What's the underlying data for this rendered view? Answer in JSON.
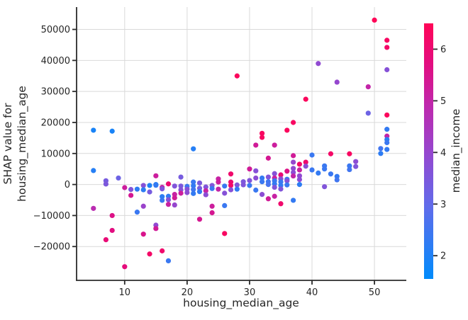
{
  "figure": {
    "background": "#ffffff",
    "grid_color": "#d9d9d9",
    "spine_color": "#2b2b2b",
    "tick_color": "#2b2b2b",
    "text_color": "#262626"
  },
  "chart_data": {
    "type": "scatter",
    "title": "",
    "xlabel": "housing_median_age",
    "ylabel_line1": "SHAP value for",
    "ylabel_line2": "housing_median_age",
    "colorbar_label": "median_income",
    "xlim": [
      2.3,
      55.1
    ],
    "ylim": [
      -30900,
      57200
    ],
    "grid": true,
    "legend_position": "colorbar-right",
    "xticks": [
      {
        "v": 10,
        "label": "10"
      },
      {
        "v": 20,
        "label": "20"
      },
      {
        "v": 30,
        "label": "30"
      },
      {
        "v": 40,
        "label": "40"
      },
      {
        "v": 50,
        "label": "50"
      }
    ],
    "yticks": [
      {
        "v": -20000,
        "label": "−20000"
      },
      {
        "v": -10000,
        "label": "−10000"
      },
      {
        "v": 0,
        "label": "0"
      },
      {
        "v": 10000,
        "label": "10000"
      },
      {
        "v": 20000,
        "label": "20000"
      },
      {
        "v": 30000,
        "label": "30000"
      },
      {
        "v": 40000,
        "label": "40000"
      },
      {
        "v": 50000,
        "label": "50000"
      }
    ],
    "colorbar_ticks": [
      {
        "v": 6,
        "label": "6"
      },
      {
        "v": 5,
        "label": "5"
      },
      {
        "v": 4,
        "label": "4"
      },
      {
        "v": 3,
        "label": "3"
      },
      {
        "v": 2,
        "label": "2"
      }
    ],
    "colorbar_range": [
      1.55,
      6.5
    ],
    "colormap_stops": [
      [
        0.0,
        "#008bfb"
      ],
      [
        0.28,
        "#5f6ceb"
      ],
      [
        0.48,
        "#9249d1"
      ],
      [
        0.68,
        "#bf28ad"
      ],
      [
        0.84,
        "#e20d80"
      ],
      [
        1.0,
        "#ff0557"
      ]
    ],
    "points_format": [
      "housing_median_age",
      "shap_value",
      "median_income"
    ],
    "points": [
      [
        5,
        17500,
        1.9
      ],
      [
        8,
        17200,
        1.9
      ],
      [
        5,
        4500,
        2.1
      ],
      [
        7,
        1200,
        3.4
      ],
      [
        9,
        2100,
        3.2
      ],
      [
        7,
        150,
        3.5
      ],
      [
        5,
        -7700,
        4.8
      ],
      [
        8,
        -10000,
        5.6
      ],
      [
        8,
        -14800,
        5.7
      ],
      [
        7,
        -17800,
        5.9
      ],
      [
        10,
        -26500,
        5.8
      ],
      [
        10,
        -1000,
        5.2
      ],
      [
        11,
        -1600,
        3.6
      ],
      [
        11,
        -3500,
        5.4
      ],
      [
        12,
        -1500,
        2.2
      ],
      [
        12,
        -8900,
        2.4
      ],
      [
        13,
        -300,
        3.7
      ],
      [
        13,
        -1700,
        2.2
      ],
      [
        13,
        -7000,
        4.1
      ],
      [
        13,
        -16000,
        5.5
      ],
      [
        14,
        -300,
        2.0
      ],
      [
        14,
        -2400,
        3.4
      ],
      [
        14,
        -22400,
        6.2
      ],
      [
        15,
        2800,
        5.2
      ],
      [
        15,
        0,
        2.1
      ],
      [
        15,
        -250,
        2.3
      ],
      [
        15,
        -13100,
        3.9
      ],
      [
        15,
        -14200,
        5.3
      ],
      [
        16,
        -900,
        5.0
      ],
      [
        16,
        -1400,
        3.5
      ],
      [
        16,
        -3900,
        2.2
      ],
      [
        16,
        -5100,
        2.4
      ],
      [
        16,
        -21400,
        6.1
      ],
      [
        17,
        200,
        6.0
      ],
      [
        17,
        -3800,
        2.3
      ],
      [
        17,
        -4900,
        3.7
      ],
      [
        17,
        -6400,
        5.1
      ],
      [
        17,
        -24600,
        2.4
      ],
      [
        18,
        -500,
        3.6
      ],
      [
        18,
        -3200,
        5.1
      ],
      [
        18,
        -4300,
        5.3
      ],
      [
        18,
        -6600,
        4.0
      ],
      [
        19,
        2400,
        3.4
      ],
      [
        19,
        -500,
        3.5
      ],
      [
        19,
        -1700,
        3.7
      ],
      [
        19,
        -2800,
        5.2
      ],
      [
        20,
        -600,
        2.4
      ],
      [
        20,
        -1500,
        3.7
      ],
      [
        20,
        -2600,
        3.8
      ],
      [
        21,
        11500,
        2.1
      ],
      [
        21,
        800,
        2.4
      ],
      [
        21,
        -400,
        2.3
      ],
      [
        21,
        -1600,
        2.5
      ],
      [
        21,
        -2900,
        2.3
      ],
      [
        22,
        500,
        3.5
      ],
      [
        22,
        -1200,
        3.4
      ],
      [
        22,
        -2300,
        2.3
      ],
      [
        22,
        -11200,
        5.4
      ],
      [
        23,
        -800,
        3.6
      ],
      [
        23,
        -2000,
        5.1
      ],
      [
        23,
        -3300,
        3.8
      ],
      [
        24,
        -300,
        3.6
      ],
      [
        24,
        -1300,
        2.4
      ],
      [
        24,
        -7000,
        5.2
      ],
      [
        24,
        -9100,
        5.4
      ],
      [
        25,
        1800,
        5.1
      ],
      [
        25,
        800,
        5.2
      ],
      [
        25,
        -1500,
        5.0
      ],
      [
        26,
        -500,
        2.4
      ],
      [
        26,
        -2800,
        3.7
      ],
      [
        26,
        -6800,
        2.4
      ],
      [
        26,
        -15800,
        6.3
      ],
      [
        27,
        3400,
        6.1
      ],
      [
        27,
        800,
        6.0
      ],
      [
        27,
        -300,
        6.2
      ],
      [
        27,
        -1700,
        3.7
      ],
      [
        28,
        35000,
        6.4
      ],
      [
        28,
        -150,
        3.6
      ],
      [
        28,
        -1500,
        2.3
      ],
      [
        29,
        900,
        3.5
      ],
      [
        29,
        -100,
        3.6
      ],
      [
        30,
        5000,
        5.3
      ],
      [
        30,
        1300,
        3.6
      ],
      [
        30,
        -300,
        2.4
      ],
      [
        31,
        12700,
        5.3
      ],
      [
        31,
        4400,
        3.7
      ],
      [
        31,
        2100,
        3.8
      ],
      [
        31,
        -1800,
        2.4
      ],
      [
        32,
        16500,
        6.3
      ],
      [
        32,
        15200,
        6.3
      ],
      [
        32,
        2100,
        2.3
      ],
      [
        32,
        900,
        2.4
      ],
      [
        32,
        -3200,
        3.8
      ],
      [
        33,
        8500,
        5.4
      ],
      [
        33,
        2400,
        3.6
      ],
      [
        33,
        900,
        2.5
      ],
      [
        33,
        0,
        2.6
      ],
      [
        33,
        -4600,
        5.3
      ],
      [
        34,
        12700,
        5.2
      ],
      [
        34,
        3500,
        3.7
      ],
      [
        34,
        2100,
        5.1
      ],
      [
        34,
        1200,
        2.4
      ],
      [
        34,
        200,
        2.3
      ],
      [
        34,
        -900,
        3.6
      ],
      [
        34,
        -3800,
        5.1
      ],
      [
        35,
        3100,
        5.9
      ],
      [
        35,
        1800,
        3.8
      ],
      [
        35,
        850,
        2.4
      ],
      [
        35,
        -300,
        2.3
      ],
      [
        35,
        -1450,
        3.6
      ],
      [
        35,
        -6200,
        6.1
      ],
      [
        36,
        17500,
        6.4
      ],
      [
        36,
        4300,
        5.6
      ],
      [
        36,
        1700,
        2.4
      ],
      [
        36,
        1200,
        3.7
      ],
      [
        36,
        -130,
        2.4
      ],
      [
        37,
        20000,
        6.3
      ],
      [
        37,
        9300,
        5.3
      ],
      [
        37,
        7200,
        4.0
      ],
      [
        37,
        5200,
        3.9
      ],
      [
        37,
        3900,
        3.8
      ],
      [
        37,
        2750,
        5.0
      ],
      [
        37,
        -5100,
        2.3
      ],
      [
        38,
        6550,
        6.2
      ],
      [
        38,
        4700,
        5.1
      ],
      [
        38,
        2800,
        3.9
      ],
      [
        38,
        1600,
        3.8
      ],
      [
        38,
        0,
        2.2
      ],
      [
        39,
        27500,
        6.4
      ],
      [
        39,
        7200,
        6.1
      ],
      [
        39,
        5900,
        3.8
      ],
      [
        40,
        9500,
        2.4
      ],
      [
        40,
        4700,
        2.4
      ],
      [
        41,
        39000,
        3.9
      ],
      [
        41,
        3700,
        2.3
      ],
      [
        42,
        6000,
        2.4
      ],
      [
        42,
        5000,
        2.4
      ],
      [
        42,
        -700,
        3.6
      ],
      [
        43,
        9900,
        6.2
      ],
      [
        43,
        3400,
        2.4
      ],
      [
        44,
        33000,
        4.0
      ],
      [
        44,
        2600,
        2.3
      ],
      [
        44,
        1500,
        2.5
      ],
      [
        46,
        9900,
        6.3
      ],
      [
        46,
        6000,
        2.4
      ],
      [
        46,
        4800,
        2.5
      ],
      [
        47,
        7400,
        3.8
      ],
      [
        47,
        5800,
        3.6
      ],
      [
        49,
        31500,
        5.0
      ],
      [
        49,
        23000,
        3.2
      ],
      [
        50,
        53000,
        6.5
      ],
      [
        51,
        11600,
        2.5
      ],
      [
        51,
        10000,
        2.2
      ],
      [
        52,
        46500,
        6.3
      ],
      [
        52,
        44200,
        6.2
      ],
      [
        52,
        37000,
        3.7
      ],
      [
        52,
        22400,
        6.4
      ],
      [
        52,
        17800,
        2.3
      ],
      [
        52,
        15600,
        5.0
      ],
      [
        52,
        14500,
        2.2
      ],
      [
        52,
        13500,
        2.4
      ],
      [
        52,
        11300,
        2.3
      ]
    ]
  }
}
